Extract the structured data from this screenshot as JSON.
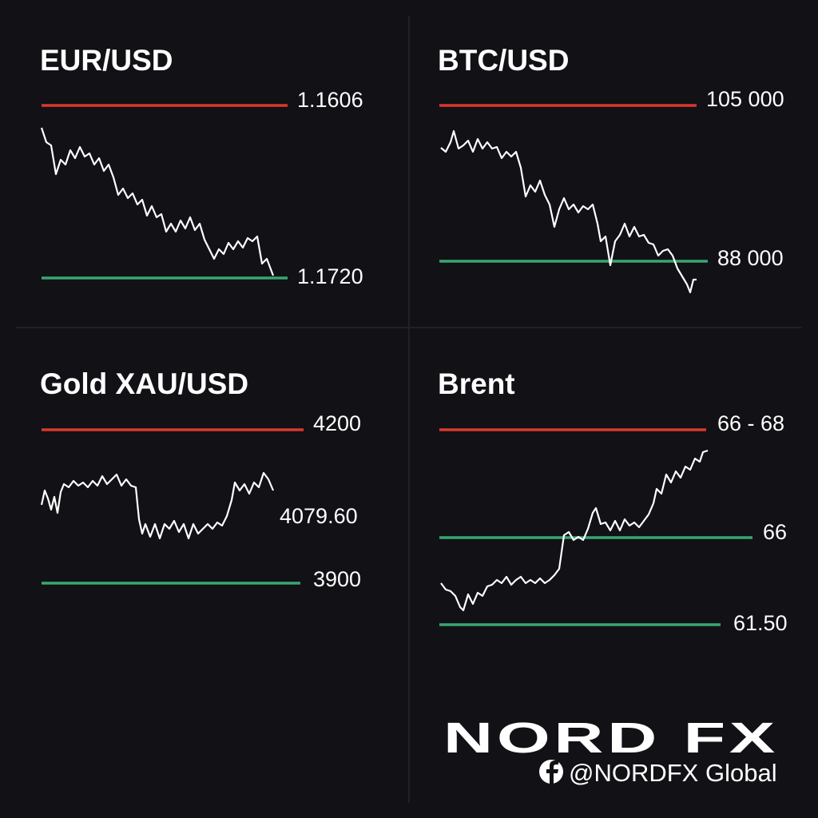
{
  "panels": [
    {
      "title": "EUR/USD",
      "levels": [
        {
          "label": "1.1606",
          "color": "#d9392f"
        },
        {
          "label": "1.1720",
          "color": "#3aa570"
        }
      ]
    },
    {
      "title": "BTC/USD",
      "levels": [
        {
          "label": "105 000",
          "color": "#d9392f"
        },
        {
          "label": "88 000",
          "color": "#3aa570"
        }
      ]
    },
    {
      "title": "Gold XAU/USD",
      "levels": [
        {
          "label": "4200",
          "color": "#d9392f"
        },
        {
          "label": "4079.60"
        },
        {
          "label": "3900",
          "color": "#3aa570"
        }
      ]
    },
    {
      "title": "Brent",
      "levels": [
        {
          "label": "66 - 68",
          "color": "#d9392f"
        },
        {
          "label": "66",
          "color": "#3aa570"
        },
        {
          "label": "61.50",
          "color": "#3aa570"
        }
      ]
    }
  ],
  "logo": {
    "brand": "NORD FX",
    "social": "@NORDFX Global"
  }
}
